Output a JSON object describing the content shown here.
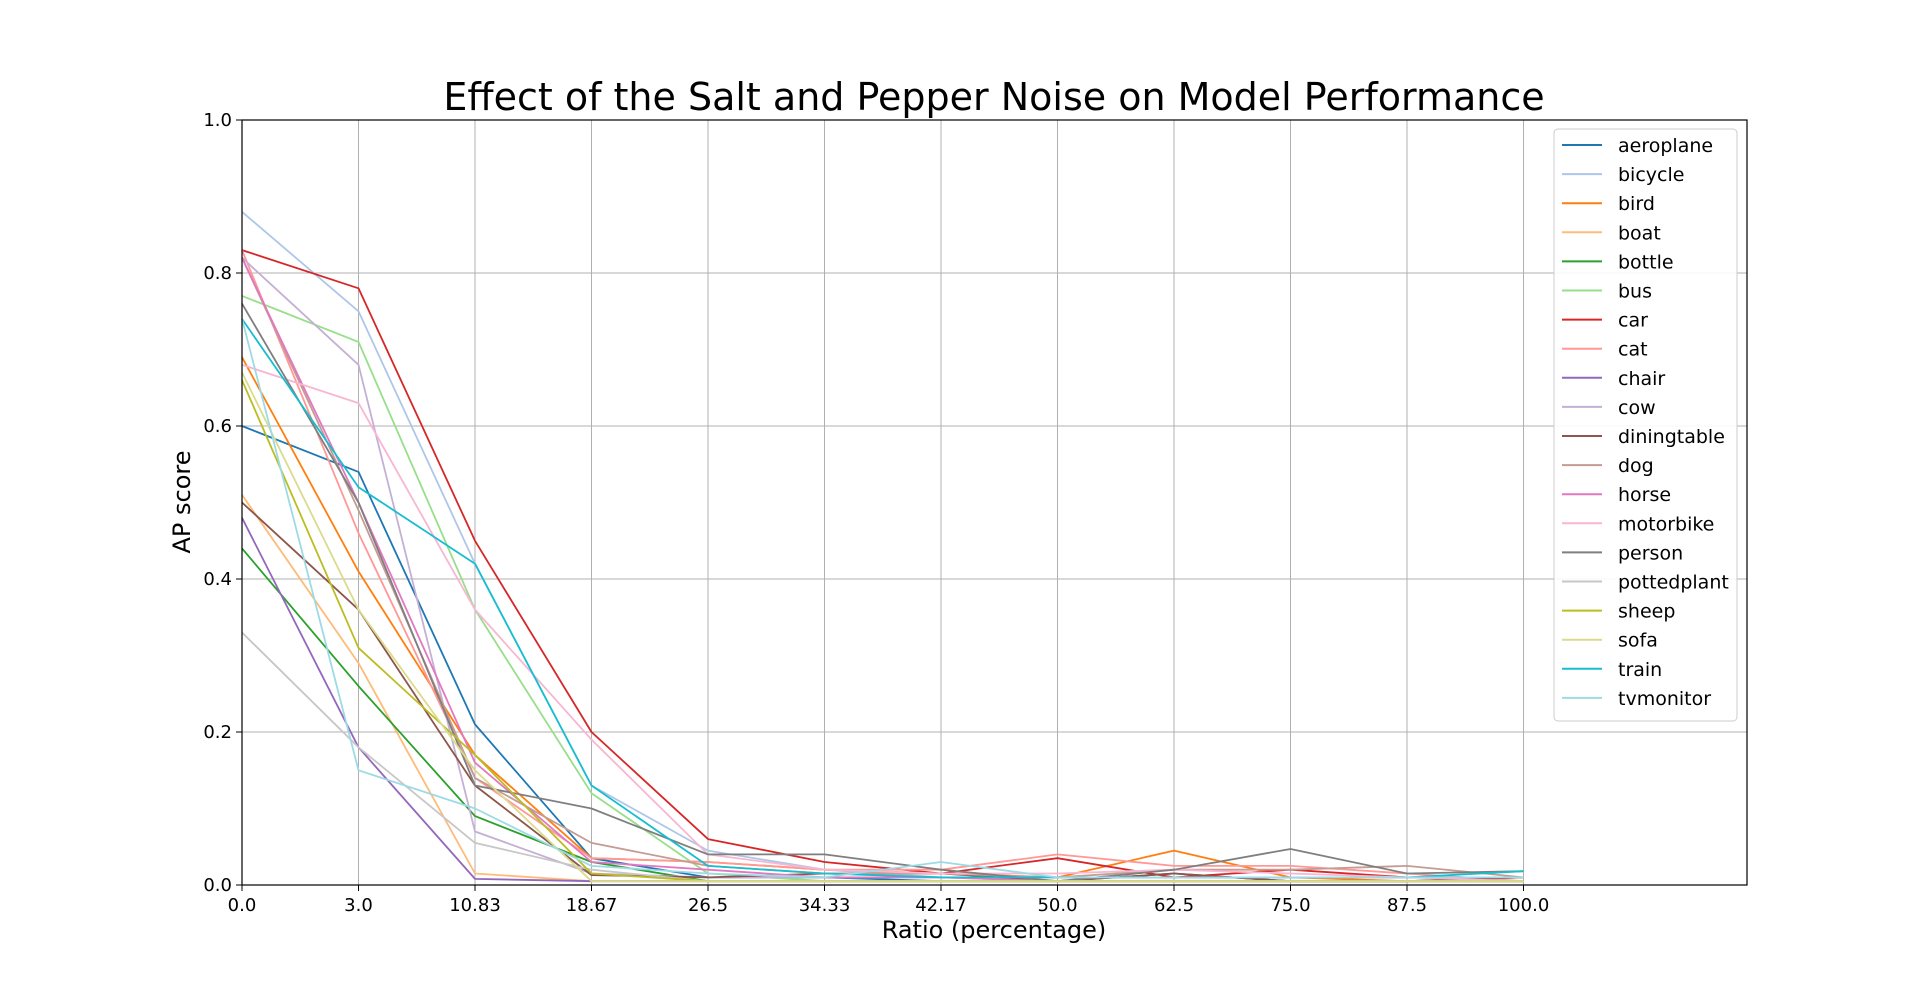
{
  "chart_data": {
    "type": "line",
    "title": "Effect of the Salt and Pepper Noise on Model Performance",
    "xlabel": "Ratio (percentage)",
    "ylabel": "AP score",
    "ylim": [
      0,
      1.0
    ],
    "y_ticks": [
      "0.0",
      "0.2",
      "0.4",
      "0.6",
      "0.8",
      "1.0"
    ],
    "x_tick_labels": [
      "0.0",
      "3.0",
      "10.83",
      "18.67",
      "26.5",
      "34.33",
      "42.17",
      "50.0",
      "62.5",
      "75.0",
      "87.5",
      "100.0"
    ],
    "grid": true,
    "legend_position": "top-right",
    "series": [
      {
        "name": "aeroplane",
        "color": "#1f77b4",
        "values": [
          0.6,
          0.54,
          0.21,
          0.035,
          0.01,
          0.01,
          0.005,
          0.005,
          0.015,
          0.005,
          0.005,
          0.01
        ]
      },
      {
        "name": "bicycle",
        "color": "#aec7e8",
        "values": [
          0.88,
          0.75,
          0.42,
          0.13,
          0.045,
          0.02,
          0.01,
          0.005,
          0.005,
          0.005,
          0.005,
          0.005
        ]
      },
      {
        "name": "bird",
        "color": "#ff7f0e",
        "values": [
          0.69,
          0.41,
          0.17,
          0.035,
          0.03,
          0.02,
          0.015,
          0.01,
          0.045,
          0.01,
          0.005,
          0.005
        ]
      },
      {
        "name": "boat",
        "color": "#ffbb78",
        "values": [
          0.51,
          0.29,
          0.015,
          0.005,
          0.005,
          0.005,
          0.005,
          0.005,
          0.005,
          0.005,
          0.005,
          0.005
        ]
      },
      {
        "name": "bottle",
        "color": "#2ca02c",
        "values": [
          0.44,
          0.26,
          0.09,
          0.03,
          0.005,
          0.005,
          0.005,
          0.005,
          0.005,
          0.005,
          0.005,
          0.005
        ]
      },
      {
        "name": "bus",
        "color": "#98df8a",
        "values": [
          0.77,
          0.71,
          0.36,
          0.12,
          0.015,
          0.005,
          0.005,
          0.005,
          0.005,
          0.005,
          0.005,
          0.005
        ]
      },
      {
        "name": "car",
        "color": "#d62728",
        "values": [
          0.83,
          0.78,
          0.45,
          0.2,
          0.06,
          0.03,
          0.015,
          0.035,
          0.01,
          0.02,
          0.01,
          0.01
        ]
      },
      {
        "name": "cat",
        "color": "#ff9896",
        "values": [
          0.83,
          0.46,
          0.14,
          0.035,
          0.03,
          0.02,
          0.02,
          0.04,
          0.025,
          0.025,
          0.015,
          0.005
        ]
      },
      {
        "name": "chair",
        "color": "#9467bd",
        "values": [
          0.48,
          0.18,
          0.008,
          0.005,
          0.005,
          0.005,
          0.005,
          0.005,
          0.005,
          0.005,
          0.005,
          0.005
        ]
      },
      {
        "name": "cow",
        "color": "#c5b0d5",
        "values": [
          0.82,
          0.68,
          0.07,
          0.015,
          0.01,
          0.01,
          0.01,
          0.01,
          0.01,
          0.01,
          0.01,
          0.01
        ]
      },
      {
        "name": "diningtable",
        "color": "#8c564b",
        "values": [
          0.5,
          0.36,
          0.13,
          0.013,
          0.01,
          0.015,
          0.015,
          0.005,
          0.015,
          0.005,
          0.005,
          0.01
        ]
      },
      {
        "name": "dog",
        "color": "#c49c94",
        "values": [
          0.82,
          0.49,
          0.14,
          0.055,
          0.025,
          0.015,
          0.015,
          0.01,
          0.02,
          0.02,
          0.025,
          0.01
        ]
      },
      {
        "name": "horse",
        "color": "#e377c2",
        "values": [
          0.82,
          0.5,
          0.16,
          0.03,
          0.02,
          0.01,
          0.01,
          0.005,
          0.005,
          0.005,
          0.005,
          0.005
        ]
      },
      {
        "name": "motorbike",
        "color": "#f7b6d2",
        "values": [
          0.68,
          0.63,
          0.36,
          0.19,
          0.04,
          0.02,
          0.015,
          0.015,
          0.02,
          0.015,
          0.01,
          0.005
        ]
      },
      {
        "name": "person",
        "color": "#7f7f7f",
        "values": [
          0.76,
          0.5,
          0.13,
          0.1,
          0.04,
          0.04,
          0.02,
          0.005,
          0.02,
          0.047,
          0.015,
          0.018
        ]
      },
      {
        "name": "pottedplant",
        "color": "#c7c7c7",
        "values": [
          0.33,
          0.18,
          0.055,
          0.02,
          0.005,
          0.005,
          0.005,
          0.005,
          0.005,
          0.005,
          0.005,
          0.005
        ]
      },
      {
        "name": "sheep",
        "color": "#bcbd22",
        "values": [
          0.66,
          0.31,
          0.17,
          0.015,
          0.005,
          0.005,
          0.005,
          0.005,
          0.005,
          0.005,
          0.005,
          0.005
        ]
      },
      {
        "name": "sofa",
        "color": "#dbdb8d",
        "values": [
          0.67,
          0.36,
          0.15,
          0.005,
          0.005,
          0.005,
          0.005,
          0.005,
          0.005,
          0.005,
          0.005,
          0.005
        ]
      },
      {
        "name": "train",
        "color": "#17becf",
        "values": [
          0.74,
          0.52,
          0.42,
          0.13,
          0.025,
          0.015,
          0.01,
          0.01,
          0.01,
          0.01,
          0.01,
          0.018
        ]
      },
      {
        "name": "tvmonitor",
        "color": "#9edae5",
        "values": [
          0.74,
          0.15,
          0.1,
          0.025,
          0.015,
          0.01,
          0.03,
          0.01,
          0.01,
          0.01,
          0.01,
          0.01
        ]
      }
    ]
  }
}
